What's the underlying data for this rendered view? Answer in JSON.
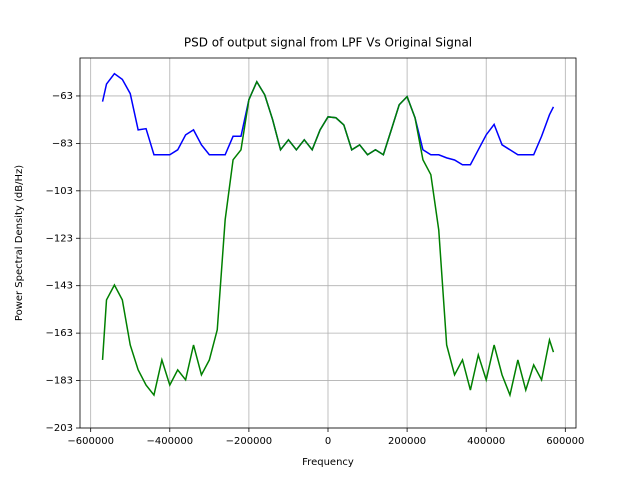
{
  "chart_data": {
    "type": "line",
    "title": "PSD of output signal from LPF Vs Original Signal",
    "x_label": "Frequency",
    "y_label": "Power Spectral Density (dB/Hz)",
    "x": [
      -570000,
      -560000,
      -540000,
      -520000,
      -500000,
      -480000,
      -460000,
      -440000,
      -420000,
      -400000,
      -380000,
      -360000,
      -340000,
      -320000,
      -300000,
      -280000,
      -260000,
      -240000,
      -220000,
      -200000,
      -180000,
      -160000,
      -140000,
      -120000,
      -100000,
      -80000,
      -60000,
      -40000,
      -20000,
      0,
      20000,
      40000,
      60000,
      80000,
      100000,
      120000,
      140000,
      160000,
      180000,
      200000,
      220000,
      240000,
      260000,
      280000,
      300000,
      320000,
      340000,
      360000,
      380000,
      400000,
      420000,
      440000,
      460000,
      480000,
      500000,
      520000,
      540000,
      560000,
      570000
    ],
    "series": [
      {
        "color": "#0000ff",
        "values": [
          -65.4,
          -58,
          -53.6,
          -56,
          -62,
          -77.3,
          -76.8,
          -87.8,
          -87.8,
          -87.8,
          -85.7,
          -79.4,
          -77.3,
          -83.6,
          -87.8,
          -87.8,
          -87.8,
          -80,
          -80,
          -64.6,
          -57,
          -62.5,
          -73,
          -85.7,
          -81.5,
          -85.7,
          -81.5,
          -85.7,
          -77.3,
          -71.8,
          -72.2,
          -75.2,
          -85.7,
          -83.6,
          -87.8,
          -85.7,
          -87.8,
          -77.3,
          -66.7,
          -63.3,
          -72.2,
          -85.7,
          -87.8,
          -87.8,
          -89.1,
          -90,
          -92,
          -92,
          -85.7,
          -79.4,
          -75,
          -83.6,
          -85.7,
          -87.8,
          -87.8,
          -87.8,
          -80,
          -70.9,
          -67.6
        ]
      },
      {
        "color": "#008000",
        "values": [
          -174.3,
          -149,
          -142.7,
          -149,
          -168,
          -178.5,
          -184.9,
          -189.1,
          -174.3,
          -184.9,
          -178.5,
          -182.7,
          -168,
          -180.6,
          -174.3,
          -161.6,
          -115.2,
          -89.9,
          -85.7,
          -64.6,
          -57,
          -62.5,
          -73,
          -85.7,
          -81.5,
          -85.7,
          -81.5,
          -85.7,
          -77.3,
          -71.8,
          -72.2,
          -75.2,
          -85.7,
          -83.6,
          -87.8,
          -85.7,
          -87.8,
          -77.3,
          -66.7,
          -63.3,
          -72.2,
          -89.9,
          -96.2,
          -119.5,
          -168,
          -180.6,
          -174.3,
          -187,
          -172.2,
          -182.7,
          -168,
          -180.6,
          -189.1,
          -174.3,
          -187,
          -176.4,
          -182.7,
          -165.9,
          -171
        ]
      }
    ],
    "xlim": [
      -627000,
      627000
    ],
    "ylim": [
      -203,
      -47
    ],
    "xticks": [
      {
        "value": -600000,
        "label": "−600000"
      },
      {
        "value": -400000,
        "label": "−400000"
      },
      {
        "value": -200000,
        "label": "−200000"
      },
      0,
      200000,
      400000,
      600000
    ],
    "yticks": [
      {
        "value": -63,
        "label": "−63"
      },
      {
        "value": -83,
        "label": "−83"
      },
      {
        "value": -103,
        "label": "−103"
      },
      {
        "value": -123,
        "label": "−123"
      },
      {
        "value": -143,
        "label": "−143"
      },
      {
        "value": -163,
        "label": "−163"
      },
      {
        "value": -183,
        "label": "−183"
      },
      {
        "value": -203,
        "label": "−203"
      }
    ],
    "grid": true
  }
}
